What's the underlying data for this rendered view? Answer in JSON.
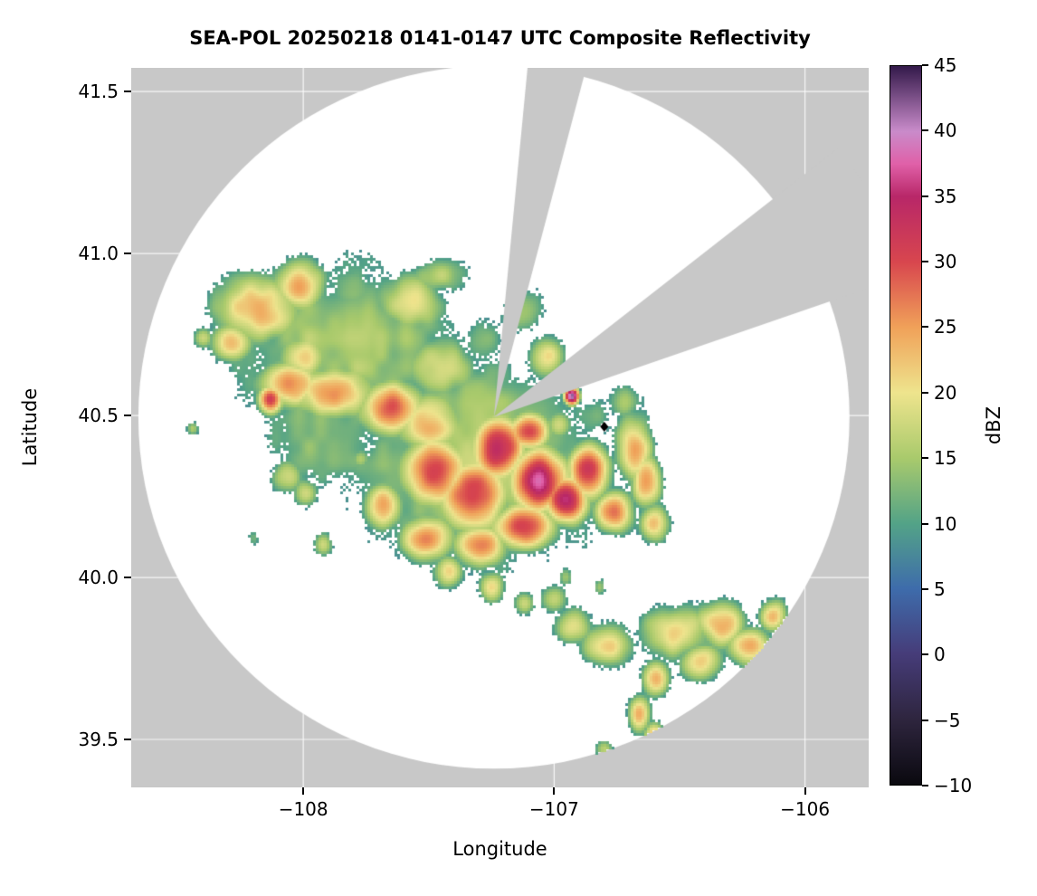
{
  "figure": {
    "background": "#ffffff"
  },
  "chart_data": {
    "type": "heatmap",
    "title": "SEA-POL 20250218 0141-0147 UTC Composite Reflectivity",
    "xlabel": "Longitude",
    "ylabel": "Latitude",
    "xlim": [
      -108.686,
      -105.746
    ],
    "ylim": [
      39.352,
      41.573
    ],
    "x_ticks": [
      {
        "value": -108,
        "label": "−108"
      },
      {
        "value": -107,
        "label": "−107"
      },
      {
        "value": -106,
        "label": "−106"
      }
    ],
    "y_ticks": [
      {
        "value": 39.5,
        "label": "39.5"
      },
      {
        "value": 40.0,
        "label": "40.0"
      },
      {
        "value": 40.5,
        "label": "40.5"
      },
      {
        "value": 41.0,
        "label": "41.0"
      },
      {
        "value": 41.5,
        "label": "41.5"
      }
    ],
    "grid": true,
    "grid_color": "rgba(255,255,255,0.85)",
    "outside_color": "#c8c8c8",
    "inside_color": "#ffffff",
    "colorbar": {
      "label": "dBZ",
      "min": -10,
      "max": 45,
      "ticks": [
        {
          "value": 45,
          "label": "45"
        },
        {
          "value": 40,
          "label": "40"
        },
        {
          "value": 35,
          "label": "35"
        },
        {
          "value": 30,
          "label": "30"
        },
        {
          "value": 25,
          "label": "25"
        },
        {
          "value": 20,
          "label": "20"
        },
        {
          "value": 15,
          "label": "15"
        },
        {
          "value": 10,
          "label": "10"
        },
        {
          "value": 5,
          "label": "5"
        },
        {
          "value": 0,
          "label": "0"
        },
        {
          "value": -5,
          "label": "−5"
        },
        {
          "value": -10,
          "label": "−10"
        }
      ],
      "stops": [
        {
          "value": -10,
          "color": "#0a090f"
        },
        {
          "value": -5,
          "color": "#2e253e"
        },
        {
          "value": 0,
          "color": "#463c79"
        },
        {
          "value": 5,
          "color": "#3e6cab"
        },
        {
          "value": 10,
          "color": "#53a387"
        },
        {
          "value": 15,
          "color": "#a9ca6c"
        },
        {
          "value": 20,
          "color": "#eee48d"
        },
        {
          "value": 25,
          "color": "#f0a159"
        },
        {
          "value": 30,
          "color": "#d8464e"
        },
        {
          "value": 35,
          "color": "#b82768"
        },
        {
          "value": 37.5,
          "color": "#e060a8"
        },
        {
          "value": 40,
          "color": "#c98bca"
        },
        {
          "value": 45,
          "color": "#33194a"
        }
      ]
    },
    "radar": {
      "center_lon": -107.24,
      "center_lat": 40.495,
      "coverage_radius_km": 120,
      "blocked_sectors_azimuth_deg": [
        [
          5.5,
          14.8
        ],
        [
          52,
          71
        ]
      ],
      "site_marker": {
        "lon": -106.8,
        "lat": 40.465,
        "shape": "diamond",
        "color": "#000000"
      }
    },
    "cell_fields": [
      "lon",
      "lat",
      "sigma_lon",
      "sigma_lat",
      "peak_dbz"
    ],
    "cells": [
      [
        -107.85,
        40.72,
        0.4,
        0.22,
        16
      ],
      [
        -107.3,
        40.35,
        0.45,
        0.28,
        17
      ],
      [
        -107.9,
        40.45,
        0.22,
        0.15,
        14
      ],
      [
        -108.18,
        40.83,
        0.14,
        0.09,
        25
      ],
      [
        -108.02,
        40.9,
        0.1,
        0.07,
        23
      ],
      [
        -108.28,
        40.73,
        0.07,
        0.05,
        23
      ],
      [
        -107.82,
        40.88,
        0.12,
        0.07,
        14
      ],
      [
        -107.58,
        40.85,
        0.14,
        0.08,
        18
      ],
      [
        -107.45,
        40.93,
        0.1,
        0.05,
        17
      ],
      [
        -107.3,
        40.73,
        0.1,
        0.08,
        13
      ],
      [
        -107.12,
        40.82,
        0.08,
        0.07,
        16
      ],
      [
        -107.03,
        40.68,
        0.07,
        0.06,
        21
      ],
      [
        -107.45,
        40.65,
        0.12,
        0.08,
        19
      ],
      [
        -108.0,
        40.68,
        0.1,
        0.06,
        21
      ],
      [
        -108.4,
        40.74,
        0.035,
        0.03,
        17
      ],
      [
        -108.06,
        40.6,
        0.1,
        0.06,
        26
      ],
      [
        -108.13,
        40.55,
        0.04,
        0.035,
        33
      ],
      [
        -107.87,
        40.57,
        0.13,
        0.07,
        26
      ],
      [
        -107.65,
        40.52,
        0.11,
        0.07,
        28
      ],
      [
        -107.5,
        40.47,
        0.12,
        0.08,
        24
      ],
      [
        -107.48,
        40.33,
        0.11,
        0.09,
        31
      ],
      [
        -107.32,
        40.25,
        0.11,
        0.09,
        32
      ],
      [
        -107.22,
        40.4,
        0.09,
        0.08,
        33
      ],
      [
        -107.06,
        40.3,
        0.09,
        0.08,
        39
      ],
      [
        -106.96,
        40.24,
        0.07,
        0.06,
        36
      ],
      [
        -106.86,
        40.33,
        0.07,
        0.07,
        31
      ],
      [
        -107.1,
        40.45,
        0.07,
        0.05,
        30
      ],
      [
        -107.12,
        40.16,
        0.11,
        0.06,
        30
      ],
      [
        -107.3,
        40.1,
        0.09,
        0.055,
        27
      ],
      [
        -107.5,
        40.12,
        0.09,
        0.06,
        26
      ],
      [
        -107.68,
        40.22,
        0.07,
        0.06,
        23
      ],
      [
        -106.76,
        40.2,
        0.06,
        0.055,
        28
      ],
      [
        -106.68,
        40.4,
        0.065,
        0.09,
        25
      ],
      [
        -106.63,
        40.3,
        0.05,
        0.07,
        26
      ],
      [
        -106.6,
        40.17,
        0.05,
        0.05,
        22
      ],
      [
        -106.86,
        40.5,
        0.09,
        0.07,
        13
      ],
      [
        -106.93,
        40.56,
        0.025,
        0.022,
        43
      ],
      [
        -106.72,
        40.54,
        0.07,
        0.05,
        15
      ],
      [
        -106.98,
        40.47,
        0.05,
        0.04,
        18
      ],
      [
        -107.42,
        40.02,
        0.05,
        0.045,
        22
      ],
      [
        -107.25,
        39.97,
        0.045,
        0.04,
        20
      ],
      [
        -107.12,
        39.92,
        0.04,
        0.035,
        18
      ],
      [
        -106.95,
        40.0,
        0.03,
        0.03,
        14
      ],
      [
        -106.82,
        39.97,
        0.025,
        0.025,
        13
      ],
      [
        -108.07,
        40.31,
        0.05,
        0.045,
        18
      ],
      [
        -107.99,
        40.26,
        0.045,
        0.04,
        16
      ],
      [
        -107.92,
        40.1,
        0.035,
        0.035,
        17
      ],
      [
        -108.2,
        40.12,
        0.025,
        0.025,
        13
      ],
      [
        -107.77,
        40.37,
        0.035,
        0.03,
        14
      ],
      [
        -108.44,
        40.46,
        0.022,
        0.02,
        14
      ],
      [
        -106.52,
        39.83,
        0.13,
        0.07,
        22
      ],
      [
        -106.33,
        39.86,
        0.09,
        0.06,
        25
      ],
      [
        -106.22,
        39.79,
        0.07,
        0.05,
        27
      ],
      [
        -106.13,
        39.88,
        0.05,
        0.045,
        23
      ],
      [
        -106.42,
        39.74,
        0.07,
        0.05,
        23
      ],
      [
        -106.78,
        39.79,
        0.09,
        0.055,
        22
      ],
      [
        -106.93,
        39.85,
        0.07,
        0.05,
        19
      ],
      [
        -107.0,
        39.93,
        0.05,
        0.04,
        18
      ],
      [
        -106.6,
        39.69,
        0.05,
        0.05,
        23
      ],
      [
        -106.66,
        39.58,
        0.04,
        0.05,
        24
      ],
      [
        -106.6,
        39.5,
        0.035,
        0.045,
        27
      ],
      [
        -106.55,
        39.43,
        0.03,
        0.04,
        26
      ],
      [
        -106.8,
        39.47,
        0.035,
        0.03,
        19
      ]
    ]
  }
}
